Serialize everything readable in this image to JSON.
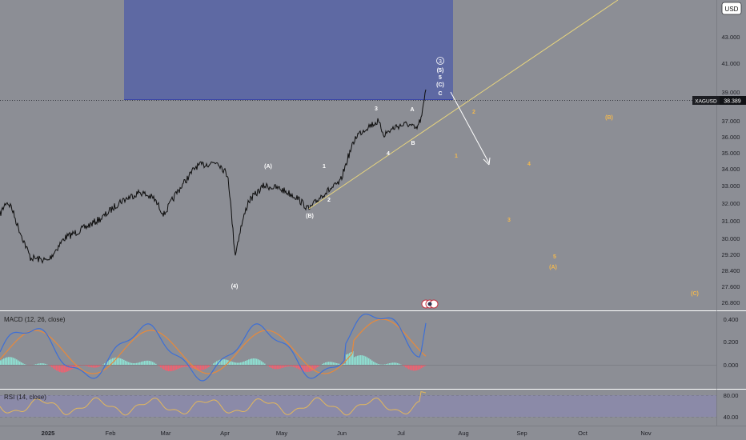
{
  "toolbar": {
    "currency_label": "USD"
  },
  "price_tag": {
    "symbol": "XAGUSD",
    "value": "38.389"
  },
  "price_axis": [
    "43.000",
    "41.000",
    "39.000",
    "37.000",
    "36.000",
    "35.000",
    "34.000",
    "33.000",
    "32.000",
    "31.000",
    "30.000",
    "29.200",
    "28.400",
    "27.600",
    "26.800"
  ],
  "time_axis": [
    "2025",
    "Feb",
    "Mar",
    "Apr",
    "May",
    "Jun",
    "Jul",
    "Aug",
    "Sep",
    "Oct",
    "Nov"
  ],
  "wave_labels": {
    "white": [
      "(A)",
      "1",
      "3",
      "A",
      "4",
      "B",
      "2",
      "(B)",
      "(4)",
      "5",
      "(C)",
      "C"
    ],
    "circled": "3",
    "orange": [
      "2",
      "1",
      "4",
      "3",
      "5",
      "(A)",
      "(B)",
      "(C)"
    ],
    "nested": "(5)"
  },
  "macd": {
    "title": "MACD (12, 26, close)",
    "axis": [
      "0.400",
      "0.200",
      "0.000"
    ]
  },
  "rsi": {
    "title": "RSI (14, close)",
    "axis": [
      "80.00",
      "40.00"
    ]
  },
  "colors": {
    "background": "#8c8e95",
    "zone": "#5e69a3",
    "price": "#0e0e0e",
    "trendline": "#e7d47d",
    "wave_orange": "#f2b84e",
    "macd_line": "#3d6fd6",
    "signal_line": "#e8893a",
    "hist_up": "#8ee1d3",
    "hist_down": "#f06070",
    "rsi_line": "#e3b75a",
    "rsi_band": "#8b86b8"
  }
}
